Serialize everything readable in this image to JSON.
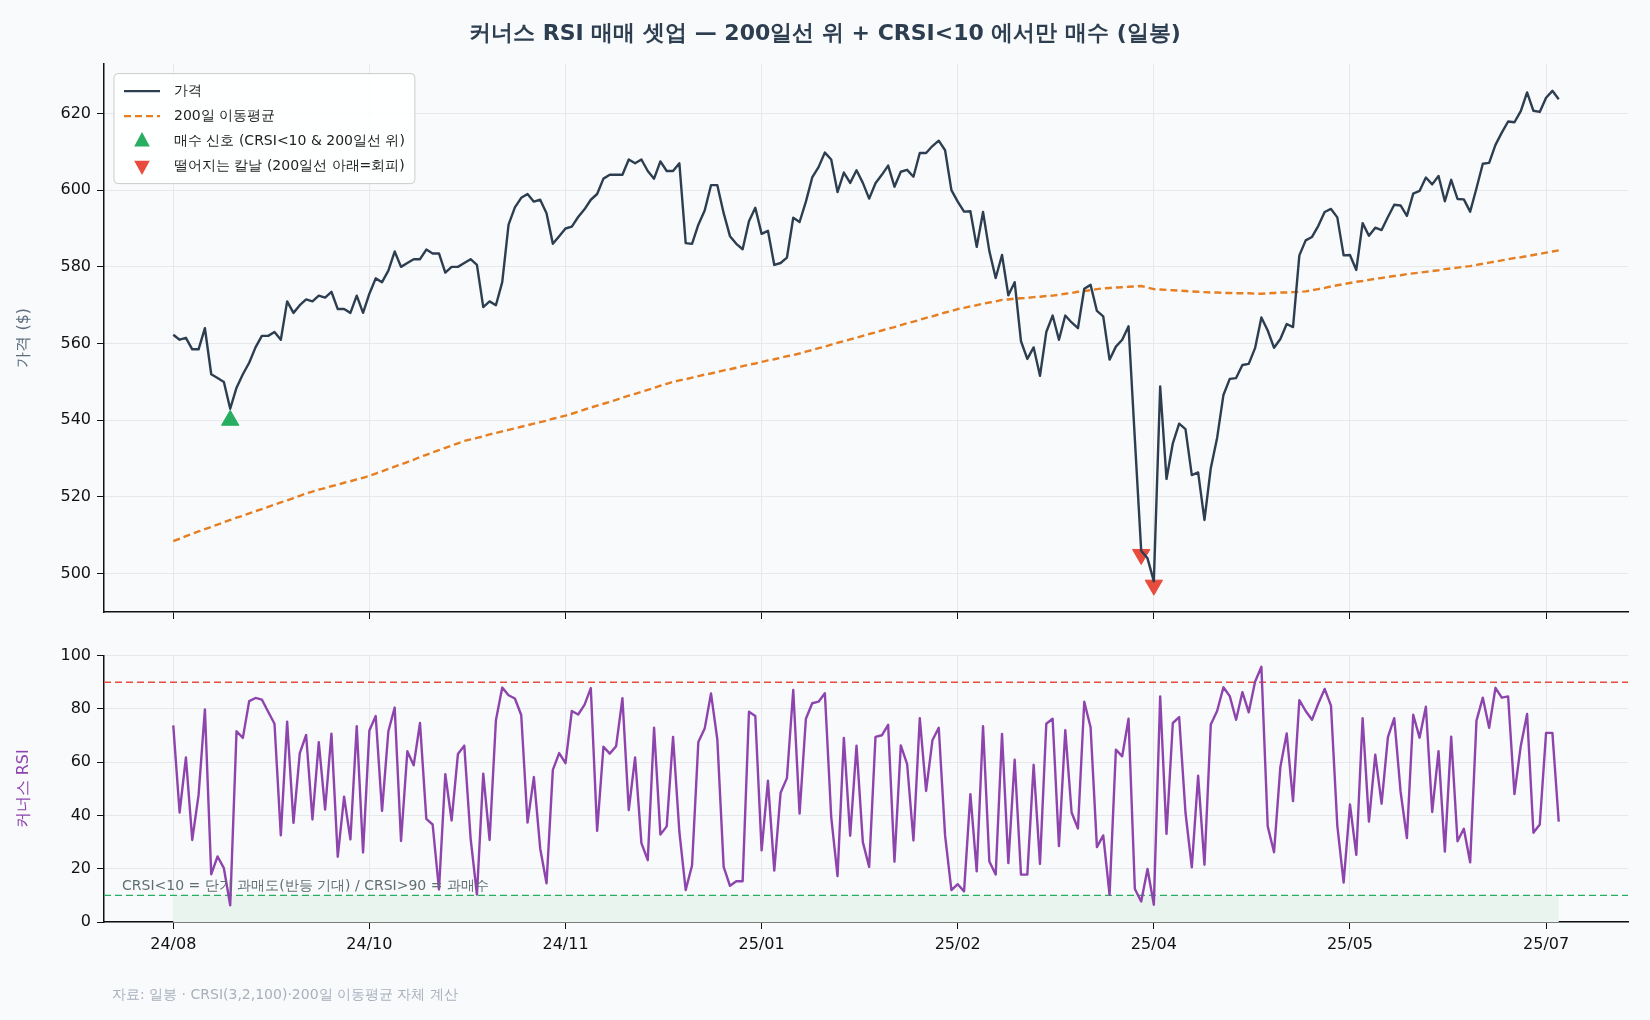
{
  "chart_data": [
    {
      "type": "line",
      "title": "커너스 RSI 매매 셋업 — 200일선 위 + CRSI<10 에서만 매수 (일봉)",
      "ylabel": "가격 ($)",
      "categories": [
        null,
        null,
        null,
        null,
        null,
        null,
        null,
        null,
        null,
        null,
        null,
        null,
        null,
        null,
        null,
        null,
        null,
        null,
        null,
        null,
        null,
        null,
        null,
        null,
        null,
        null,
        null,
        null,
        null,
        null,
        null,
        null,
        null,
        null,
        null,
        null,
        null,
        null,
        null,
        null,
        null,
        null,
        null,
        null,
        null,
        null,
        null,
        null,
        null,
        null,
        null,
        null,
        null,
        null,
        null,
        null,
        null,
        null,
        null,
        null,
        null,
        null,
        null,
        null,
        null,
        null,
        null,
        null,
        null,
        null,
        null,
        null,
        null,
        null,
        null,
        null,
        null,
        null,
        null,
        null,
        null,
        null,
        null,
        null,
        null,
        null,
        null,
        null,
        null,
        null,
        null,
        null,
        null,
        null,
        null,
        null,
        null,
        null,
        null,
        null,
        null,
        null,
        null,
        null,
        null,
        null,
        null,
        null,
        null,
        null,
        null,
        null,
        null,
        null,
        null,
        null,
        null,
        null,
        null,
        null,
        null,
        null,
        null,
        null,
        null,
        null,
        null,
        null,
        null,
        null,
        null,
        null,
        null,
        null,
        null,
        null,
        null,
        null,
        null,
        null,
        null,
        null,
        null,
        null,
        null,
        null,
        null,
        null,
        null,
        null,
        null,
        null,
        null,
        null,
        null,
        null,
        null,
        null,
        null,
        null,
        null,
        null,
        null,
        null,
        null,
        null,
        null,
        null,
        null,
        null,
        null,
        null,
        null,
        null,
        null,
        null,
        null,
        null,
        null,
        null,
        null,
        null,
        null,
        null,
        null,
        null,
        null,
        null,
        null,
        null,
        null,
        null,
        null,
        null,
        null,
        null,
        null,
        null,
        null,
        null,
        null,
        null,
        null,
        null,
        null,
        null,
        null,
        null,
        null,
        null,
        null,
        null,
        null,
        null,
        null,
        null,
        null,
        null,
        null,
        null
      ],
      "ylim": [
        490,
        633
      ],
      "yticks": [
        500,
        520,
        540,
        560,
        580,
        600,
        620
      ],
      "grid": true,
      "legend": "top left",
      "tick_labels": "y",
      "series": [
        {
          "name": "가격",
          "color": "#2c3e50",
          "values": [
            562.3,
            561,
            561.5,
            558.5,
            558.5,
            564,
            552,
            551,
            550,
            543,
            548.5,
            552,
            555,
            559,
            562,
            562,
            563,
            561,
            571,
            568,
            570,
            571.5,
            571,
            572.5,
            572,
            573.5,
            569,
            569,
            568,
            572.5,
            568,
            573,
            577,
            576,
            579,
            584,
            580,
            581,
            582,
            582,
            584.5,
            583.5,
            583.5,
            578.5,
            580,
            580,
            581,
            582,
            580.5,
            569.5,
            571,
            570,
            576,
            591,
            595.5,
            598,
            599,
            597,
            597.5,
            594,
            586,
            588,
            590,
            590.5,
            593,
            595,
            597.5,
            599,
            603,
            604,
            604,
            604,
            608,
            607,
            608,
            605,
            603,
            607.5,
            605,
            605,
            607,
            586.2,
            586,
            591,
            594.7,
            601.3,
            601.3,
            594,
            588,
            586,
            584.6,
            591.9,
            595.4,
            588.6,
            589.4,
            580.5,
            581,
            582.4,
            592.8,
            591.7,
            597,
            603.3,
            606,
            609.8,
            608,
            599.5,
            604.6,
            601.9,
            605.2,
            601.9,
            597.8,
            601.8,
            604,
            606.4,
            600.9,
            604.8,
            605.3,
            603.5,
            609.7,
            609.7,
            611.5,
            612.9,
            610.4,
            600,
            597,
            594.4,
            594.5,
            585.2,
            594.3,
            584.1,
            577.1,
            583.1,
            572.6,
            576,
            560.6,
            556,
            559,
            551.6,
            563,
            567.3,
            561,
            567.3,
            565.5,
            564,
            574.3,
            575.3,
            568.5,
            567.1,
            555.8,
            559.2,
            561,
            564.5,
            535,
            506,
            504,
            498,
            548.8,
            524.7,
            534,
            539.1,
            537.7,
            525.7,
            526.4,
            514,
            527.5,
            535.4,
            546.6,
            550.8,
            551,
            554.4,
            554.7,
            558.8,
            566.8,
            563.4,
            558.9,
            561.2,
            565.1,
            564.3,
            583,
            586.9,
            587.8,
            590.7,
            594.3,
            595.1,
            592.9,
            583,
            583.1,
            579.2,
            591.4,
            588.1,
            590.2,
            589.6,
            593,
            596.2,
            596,
            593.3,
            599.1,
            599.8,
            603.3,
            601.5,
            603.7,
            597.1,
            602.7,
            597.7,
            597.6,
            594.4,
            600.5,
            606.9,
            607.1,
            611.8,
            615,
            617.9,
            617.7,
            620.6,
            625.5,
            620.7,
            620.4,
            624.1,
            625.9,
            623.7
          ]
        },
        {
          "name": "200일 이동평균",
          "color": "#e67e22",
          "line_style": "dashed",
          "values": [
            508.5,
            509.1,
            509.8,
            510.4,
            511,
            511.6,
            512.2,
            512.8,
            513.4,
            514,
            514.6,
            515.1,
            515.7,
            516.3,
            516.8,
            517.4,
            518,
            518.6,
            519.1,
            519.7,
            520.3,
            520.9,
            521.4,
            521.9,
            522.3,
            522.8,
            523.2,
            523.7,
            524.1,
            524.6,
            525,
            525.5,
            526.1,
            526.7,
            527.3,
            527.9,
            528.5,
            529.1,
            529.7,
            530.4,
            531,
            531.6,
            532.2,
            532.8,
            533.4,
            534,
            534.6,
            535,
            535.4,
            535.8,
            536.3,
            536.7,
            537.1,
            537.5,
            537.9,
            538.3,
            538.7,
            539.1,
            539.5,
            539.9,
            540.4,
            540.8,
            541.2,
            541.7,
            542.2,
            542.8,
            543.3,
            543.8,
            544.3,
            544.8,
            545.3,
            545.9,
            546.4,
            546.9,
            547.4,
            547.9,
            548.4,
            549,
            549.5,
            550,
            550.4,
            550.7,
            551.1,
            551.5,
            551.9,
            552.2,
            552.6,
            553,
            553.3,
            553.7,
            554.1,
            554.5,
            554.8,
            555.2,
            555.6,
            555.9,
            556.3,
            556.7,
            557,
            557.4,
            557.9,
            558.3,
            558.8,
            559.2,
            559.7,
            560.2,
            560.6,
            561.1,
            561.5,
            562,
            562.5,
            562.9,
            563.4,
            563.9,
            564.3,
            564.8,
            565.3,
            565.7,
            566.2,
            566.7,
            567.1,
            567.6,
            568.1,
            568.5,
            569,
            569.3,
            569.7,
            570,
            570.4,
            570.7,
            571,
            571.4,
            571.5,
            571.7,
            571.8,
            571.9,
            572.1,
            572.2,
            572.4,
            572.5,
            572.7,
            573,
            573.2,
            573.5,
            573.7,
            573.9,
            574.2,
            574.4,
            574.5,
            574.6,
            574.7,
            574.8,
            574.9,
            575,
            574.6,
            574.2,
            574.1,
            574,
            573.9,
            573.8,
            573.7,
            573.6,
            573.5,
            573.4,
            573.3,
            573.3,
            573.2,
            573.2,
            573.1,
            573.1,
            573.1,
            573,
            573,
            573.1,
            573.2,
            573.3,
            573.3,
            573.4,
            573.5,
            573.6,
            573.9,
            574.2,
            574.5,
            574.9,
            575.2,
            575.5,
            575.8,
            576.1,
            576.3,
            576.6,
            576.9,
            577.1,
            577.4,
            577.6,
            577.8,
            578.1,
            578.3,
            578.5,
            578.7,
            578.9,
            579.1,
            579.4,
            579.6,
            579.8,
            580,
            580.2,
            580.5,
            580.8,
            581.1,
            581.4,
            581.7,
            582,
            582.3,
            582.5,
            582.8,
            583.1,
            583.4,
            583.7,
            584,
            584.3
          ]
        },
        {
          "name": "매수 신호 (CRSI<10 & 200일선 위)",
          "type": "scatter",
          "marker": "triangle",
          "color": "#27ae60",
          "values": [
            null,
            null,
            null,
            null,
            null,
            null,
            null,
            null,
            null,
            540,
            null,
            null,
            null,
            null,
            null,
            null,
            null,
            null,
            null,
            null,
            null,
            null,
            null,
            null,
            null,
            null,
            null,
            null,
            null,
            null,
            null,
            null,
            null,
            null,
            null,
            null,
            null,
            null,
            null,
            null,
            null,
            null,
            null,
            null,
            null,
            null,
            null,
            null,
            null,
            null,
            null,
            null,
            null,
            null,
            null,
            null,
            null,
            null,
            null,
            null,
            null,
            null,
            null,
            null,
            null,
            null,
            null,
            null,
            null,
            null,
            null,
            null,
            null,
            null,
            null,
            null,
            null,
            null,
            null,
            null,
            null,
            null,
            null,
            null,
            null,
            null,
            null,
            null,
            null,
            null,
            null,
            null,
            null,
            null,
            null,
            null,
            null,
            null,
            null,
            null,
            null,
            null,
            null,
            null,
            null,
            null,
            null,
            null,
            null,
            null,
            null,
            null,
            null,
            null,
            null,
            null,
            null,
            null,
            null,
            null,
            null,
            null,
            null,
            null,
            null,
            null,
            null,
            null,
            null,
            null,
            null,
            null,
            null,
            null,
            null,
            null,
            null,
            null,
            null,
            null,
            null,
            null,
            null,
            null,
            null,
            null,
            null,
            null,
            null,
            null,
            null,
            null,
            null,
            null,
            null,
            null,
            null,
            null,
            null,
            null,
            null,
            null,
            null,
            null,
            null,
            null,
            null,
            null,
            null,
            null,
            null,
            null,
            null,
            null,
            null,
            null,
            null,
            null,
            null,
            null,
            null,
            null,
            null,
            null,
            null,
            null,
            null,
            null,
            null,
            null,
            null,
            null,
            null,
            null,
            null,
            null,
            null,
            null,
            null,
            null,
            null,
            null,
            null,
            null,
            null,
            null,
            null,
            null,
            null,
            null,
            null,
            null,
            null,
            null,
            null,
            null,
            null,
            null,
            null,
            null
          ]
        },
        {
          "name": "떨어지는 칼날 (200일선 아래=회피)",
          "type": "scatter",
          "marker": "triangle-down",
          "color": "#e74c3c",
          "values": [
            null,
            null,
            null,
            null,
            null,
            null,
            null,
            null,
            null,
            null,
            null,
            null,
            null,
            null,
            null,
            null,
            null,
            null,
            null,
            null,
            null,
            null,
            null,
            null,
            null,
            null,
            null,
            null,
            null,
            null,
            null,
            null,
            null,
            null,
            null,
            null,
            null,
            null,
            null,
            null,
            null,
            null,
            null,
            null,
            null,
            null,
            null,
            null,
            null,
            null,
            null,
            null,
            null,
            null,
            null,
            null,
            null,
            null,
            null,
            null,
            null,
            null,
            null,
            null,
            null,
            null,
            null,
            null,
            null,
            null,
            null,
            null,
            null,
            null,
            null,
            null,
            null,
            null,
            null,
            null,
            null,
            null,
            null,
            null,
            null,
            null,
            null,
            null,
            null,
            null,
            null,
            null,
            null,
            null,
            null,
            null,
            null,
            null,
            null,
            null,
            null,
            null,
            null,
            null,
            null,
            null,
            null,
            null,
            null,
            null,
            null,
            null,
            null,
            null,
            null,
            null,
            null,
            null,
            null,
            null,
            null,
            null,
            null,
            null,
            null,
            null,
            null,
            null,
            null,
            null,
            null,
            null,
            null,
            null,
            null,
            null,
            null,
            null,
            null,
            null,
            null,
            null,
            null,
            null,
            null,
            null,
            null,
            null,
            null,
            null,
            null,
            null,
            null,
            505,
            null,
            497,
            null,
            null,
            null,
            null,
            null,
            null,
            null,
            null,
            null,
            null,
            null,
            null,
            null,
            null,
            null,
            null,
            null,
            null,
            null,
            null,
            null,
            null,
            null,
            null,
            null,
            null,
            null,
            null,
            null,
            null,
            null,
            null,
            null,
            null,
            null,
            null,
            null,
            null,
            null,
            null,
            null,
            null,
            null,
            null,
            null,
            null,
            null,
            null,
            null,
            null,
            null,
            null,
            null,
            null,
            null,
            null,
            null,
            null,
            null,
            null,
            null,
            null,
            null,
            null
          ]
        }
      ]
    },
    {
      "type": "line",
      "ylabel": "커너스 RSI",
      "categories": [
        "24/08",
        null,
        null,
        null,
        null,
        null,
        null,
        null,
        null,
        null,
        null,
        null,
        null,
        null,
        null,
        null,
        null,
        null,
        null,
        null,
        null,
        null,
        null,
        null,
        null,
        null,
        null,
        null,
        null,
        null,
        null,
        "24/10",
        null,
        null,
        null,
        null,
        null,
        null,
        null,
        null,
        null,
        null,
        null,
        null,
        null,
        null,
        null,
        null,
        null,
        null,
        null,
        null,
        null,
        null,
        null,
        null,
        null,
        null,
        null,
        null,
        null,
        null,
        "24/11",
        null,
        null,
        null,
        null,
        null,
        null,
        null,
        null,
        null,
        null,
        null,
        null,
        null,
        null,
        null,
        null,
        null,
        null,
        null,
        null,
        null,
        null,
        null,
        null,
        null,
        null,
        null,
        null,
        null,
        null,
        "25/01",
        null,
        null,
        null,
        null,
        null,
        null,
        null,
        null,
        null,
        null,
        null,
        null,
        null,
        null,
        null,
        null,
        null,
        null,
        null,
        null,
        null,
        null,
        null,
        null,
        null,
        null,
        null,
        null,
        null,
        null,
        "25/02",
        null,
        null,
        null,
        null,
        null,
        null,
        null,
        null,
        null,
        null,
        null,
        null,
        null,
        null,
        null,
        null,
        null,
        null,
        null,
        null,
        null,
        null,
        null,
        null,
        null,
        null,
        null,
        null,
        null,
        null,
        "25/04",
        null,
        null,
        null,
        null,
        null,
        null,
        null,
        null,
        null,
        null,
        null,
        null,
        null,
        null,
        null,
        null,
        null,
        null,
        null,
        null,
        null,
        null,
        null,
        null,
        null,
        null,
        null,
        null,
        null,
        null,
        "25/05",
        null,
        null,
        null,
        null,
        null,
        null,
        null,
        null,
        null,
        null,
        null,
        null,
        null,
        null,
        null,
        null,
        null,
        null,
        null,
        null,
        null,
        null,
        null,
        null,
        null,
        null,
        null,
        null,
        null,
        null,
        "25/07",
        null,
        null
      ],
      "ylim": [
        0,
        100
      ],
      "yticks": [
        0,
        20,
        40,
        60,
        80,
        100
      ],
      "grid": true,
      "ref_lines": [
        {
          "axis": "y",
          "value": 90,
          "color": "#e74c3c",
          "line_style": "dashed"
        },
        {
          "axis": "y",
          "value": 10,
          "color": "#27ae60",
          "line_style": "dashed"
        }
      ],
      "bands": [
        {
          "axis": "y",
          "from": 0,
          "to": 10,
          "color": "#e9f4ee"
        }
      ],
      "annotations": [
        {
          "text": "CRSI<10 = 단기 과매도(반등 기대) / CRSI>90 = 과매수",
          "y": 10
        },
        "자료: 일봉 · CRSI(3,2,100)·200일 이동평균 자체 계산"
      ],
      "series": [
        {
          "color": "#8e44ad",
          "values": [
            73.8,
            41.1,
            61.8,
            30.8,
            47.7,
            79.8,
            17.9,
            24.6,
            20.2,
            6.3,
            71.6,
            69.1,
            82.9,
            84.1,
            83.5,
            78.9,
            74.4,
            32.5,
            75.2,
            37.2,
            63.4,
            70.2,
            38.5,
            67.5,
            42.2,
            70.7,
            24.5,
            47,
            31,
            73.5,
            26.1,
            71.9,
            77.3,
            41.7,
            71.6,
            80.5,
            30.4,
            64.1,
            58.8,
            74.7,
            38.7,
            36.6,
            12.2,
            55.5,
            38.1,
            63.1,
            66.2,
            31.4,
            10.3,
            55.7,
            30.8,
            75.7,
            88,
            85.1,
            83.9,
            77.7,
            37.3,
            54.4,
            27.6,
            14.5,
            57.1,
            63.4,
            59.6,
            79.2,
            77.9,
            81.5,
            87.8,
            34.2,
            65.8,
            63.2,
            66,
            84,
            42,
            61.8,
            29.6,
            23.2,
            72.9,
            32.8,
            35.9,
            69.5,
            33.8,
            12,
            21.2,
            67.6,
            72.6,
            85.8,
            68.5,
            20.7,
            13.6,
            15.3,
            15.3,
            78.9,
            77.3,
            26.9,
            53,
            19.3,
            48.5,
            54,
            87.1,
            40.7,
            76.3,
            82.1,
            82.7,
            85.9,
            39.5,
            17.2,
            69.1,
            32.4,
            66.2,
            30,
            20.7,
            69.5,
            70.1,
            74,
            22.6,
            66.3,
            59.3,
            30.6,
            76.5,
            49.2,
            68.2,
            72.9,
            32.5,
            12,
            14.2,
            11.5,
            48,
            19,
            73.5,
            22.7,
            17.8,
            70.6,
            22.1,
            60.9,
            17.8,
            17.8,
            59,
            21.8,
            74.4,
            76.3,
            28.5,
            72,
            41.1,
            35.1,
            82.7,
            73.1,
            28.1,
            32.5,
            10.2,
            64.7,
            62.2,
            76.3,
            12.4,
            7.7,
            19.9,
            6.5,
            84.7,
            33.1,
            74.7,
            76.9,
            41.1,
            20.5,
            54.9,
            21.5,
            74.1,
            79.2,
            88.1,
            84.8,
            75.9,
            86.3,
            78.7,
            90.2,
            95.8,
            35.9,
            26.2,
            58.2,
            70.8,
            45.4,
            83.3,
            79.2,
            75.9,
            82,
            87.5,
            81.2,
            36.2,
            14.8,
            44.1,
            25.2,
            76.5,
            37.7,
            62.8,
            44.4,
            69.4,
            76.5,
            49,
            31.5,
            77.8,
            69.2,
            80.8,
            41.3,
            64.1,
            26.4,
            69.6,
            30.3,
            35,
            22.4,
            75.6,
            84.2,
            72.9,
            87.9,
            84.2,
            84.7,
            48,
            66.1,
            78.1,
            33.5,
            36.6,
            71,
            71,
            37.7
          ]
        }
      ]
    }
  ]
}
